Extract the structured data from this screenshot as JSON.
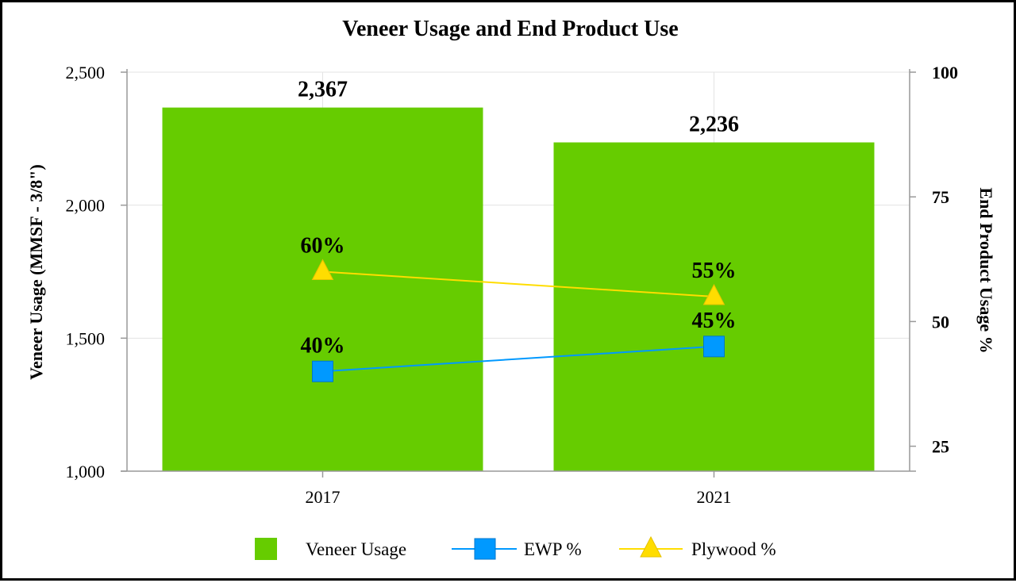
{
  "chart_data": {
    "type": "bar",
    "title": "Veneer Usage and End Product Use",
    "categories": [
      "2017",
      "2021"
    ],
    "ylabel": "Veneer Usage (MMSF - 3/8\")",
    "y2label": "End Product Usage %",
    "ylim": [
      1000,
      2500
    ],
    "y2lim": [
      20,
      100
    ],
    "yticks": [
      "1,000",
      "1,500",
      "2,000",
      "2,500"
    ],
    "y2ticks": [
      "25",
      "50",
      "75",
      "100"
    ],
    "grid": true,
    "legend_position": "bottom",
    "series": [
      {
        "name": "Veneer Usage",
        "kind": "bar",
        "axis": "left",
        "values": [
          2367,
          2236
        ],
        "labels": [
          "2,367",
          "2,236"
        ],
        "color": "#66cc00"
      },
      {
        "name": "EWP %",
        "kind": "line",
        "marker": "square",
        "axis": "right",
        "values": [
          40,
          45
        ],
        "labels": [
          "40%",
          "45%"
        ],
        "color": "#0099ff"
      },
      {
        "name": "Plywood %",
        "kind": "line",
        "marker": "triangle",
        "axis": "right",
        "values": [
          60,
          55
        ],
        "labels": [
          "60%",
          "55%"
        ],
        "color": "#ffdd00"
      }
    ]
  }
}
